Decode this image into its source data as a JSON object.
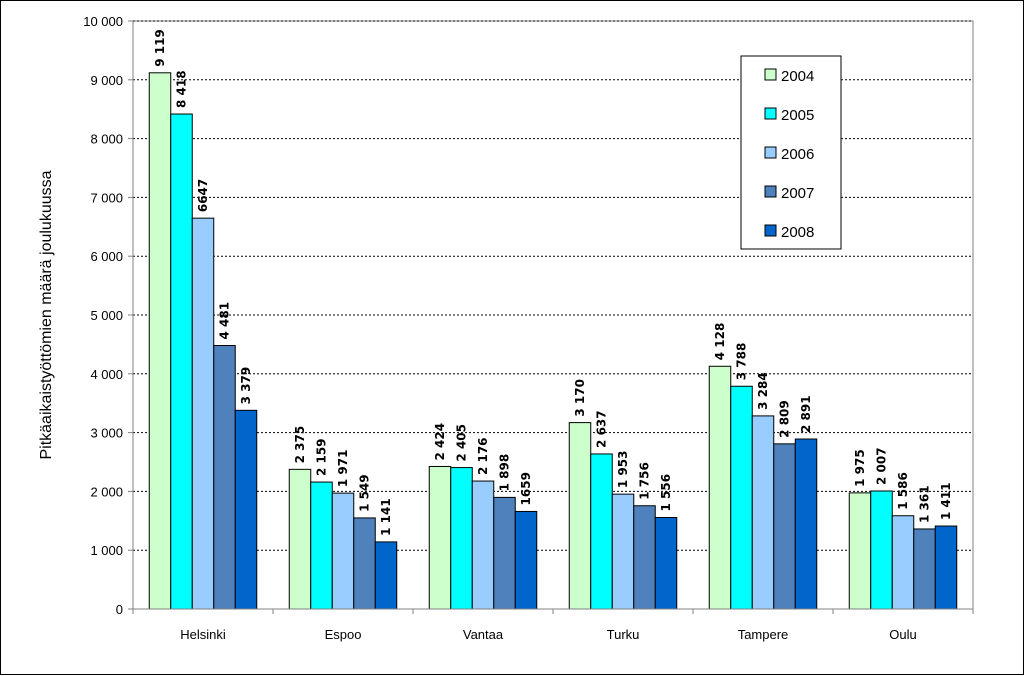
{
  "chart_data": {
    "type": "bar",
    "ylabel": "Pitkäaikaistyöttömien määrä joulukuussa",
    "xlabel": "",
    "ylim": [
      0,
      10000
    ],
    "yticks": [
      0,
      1000,
      2000,
      3000,
      4000,
      5000,
      6000,
      7000,
      8000,
      9000,
      10000
    ],
    "ytick_labels": [
      "0",
      "1 000",
      "2 000",
      "3 000",
      "4 000",
      "5 000",
      "6 000",
      "7 000",
      "8 000",
      "9 000",
      "10 000"
    ],
    "grid": "horizontal dashed",
    "legend_position": "top-right",
    "categories": [
      "Helsinki",
      "Espoo",
      "Vantaa",
      "Turku",
      "Tampere",
      "Oulu"
    ],
    "series": [
      {
        "name": "2004",
        "color": "#ccffcc",
        "values": [
          9119,
          2375,
          2424,
          3170,
          4128,
          1975
        ],
        "labels": [
          "9 119",
          "2 375",
          "2 424",
          "3 170",
          "4 128",
          "1 975"
        ]
      },
      {
        "name": "2005",
        "color": "#00ffff",
        "values": [
          8418,
          2159,
          2405,
          2637,
          3788,
          2007
        ],
        "labels": [
          "8 418",
          "2 159",
          "2 405",
          "2 637",
          "3 788",
          "2 007"
        ]
      },
      {
        "name": "2006",
        "color": "#99ccff",
        "values": [
          6647,
          1971,
          2176,
          1953,
          3284,
          1586
        ],
        "labels": [
          "6647",
          "1 971",
          "2 176",
          "1 953",
          "3 284",
          "1 586"
        ]
      },
      {
        "name": "2007",
        "color": "#4f81bd",
        "values": [
          4481,
          1549,
          1898,
          1756,
          2809,
          1361
        ],
        "labels": [
          "4 481",
          "1 549",
          "1 898",
          "1 756",
          "2 809",
          "1 361"
        ]
      },
      {
        "name": "2008",
        "color": "#0066cc",
        "values": [
          3379,
          1141,
          1659,
          1556,
          2891,
          1411
        ],
        "labels": [
          "3 379",
          "1 141",
          "1659",
          "1 556",
          "2 891",
          "1 411"
        ]
      }
    ]
  }
}
